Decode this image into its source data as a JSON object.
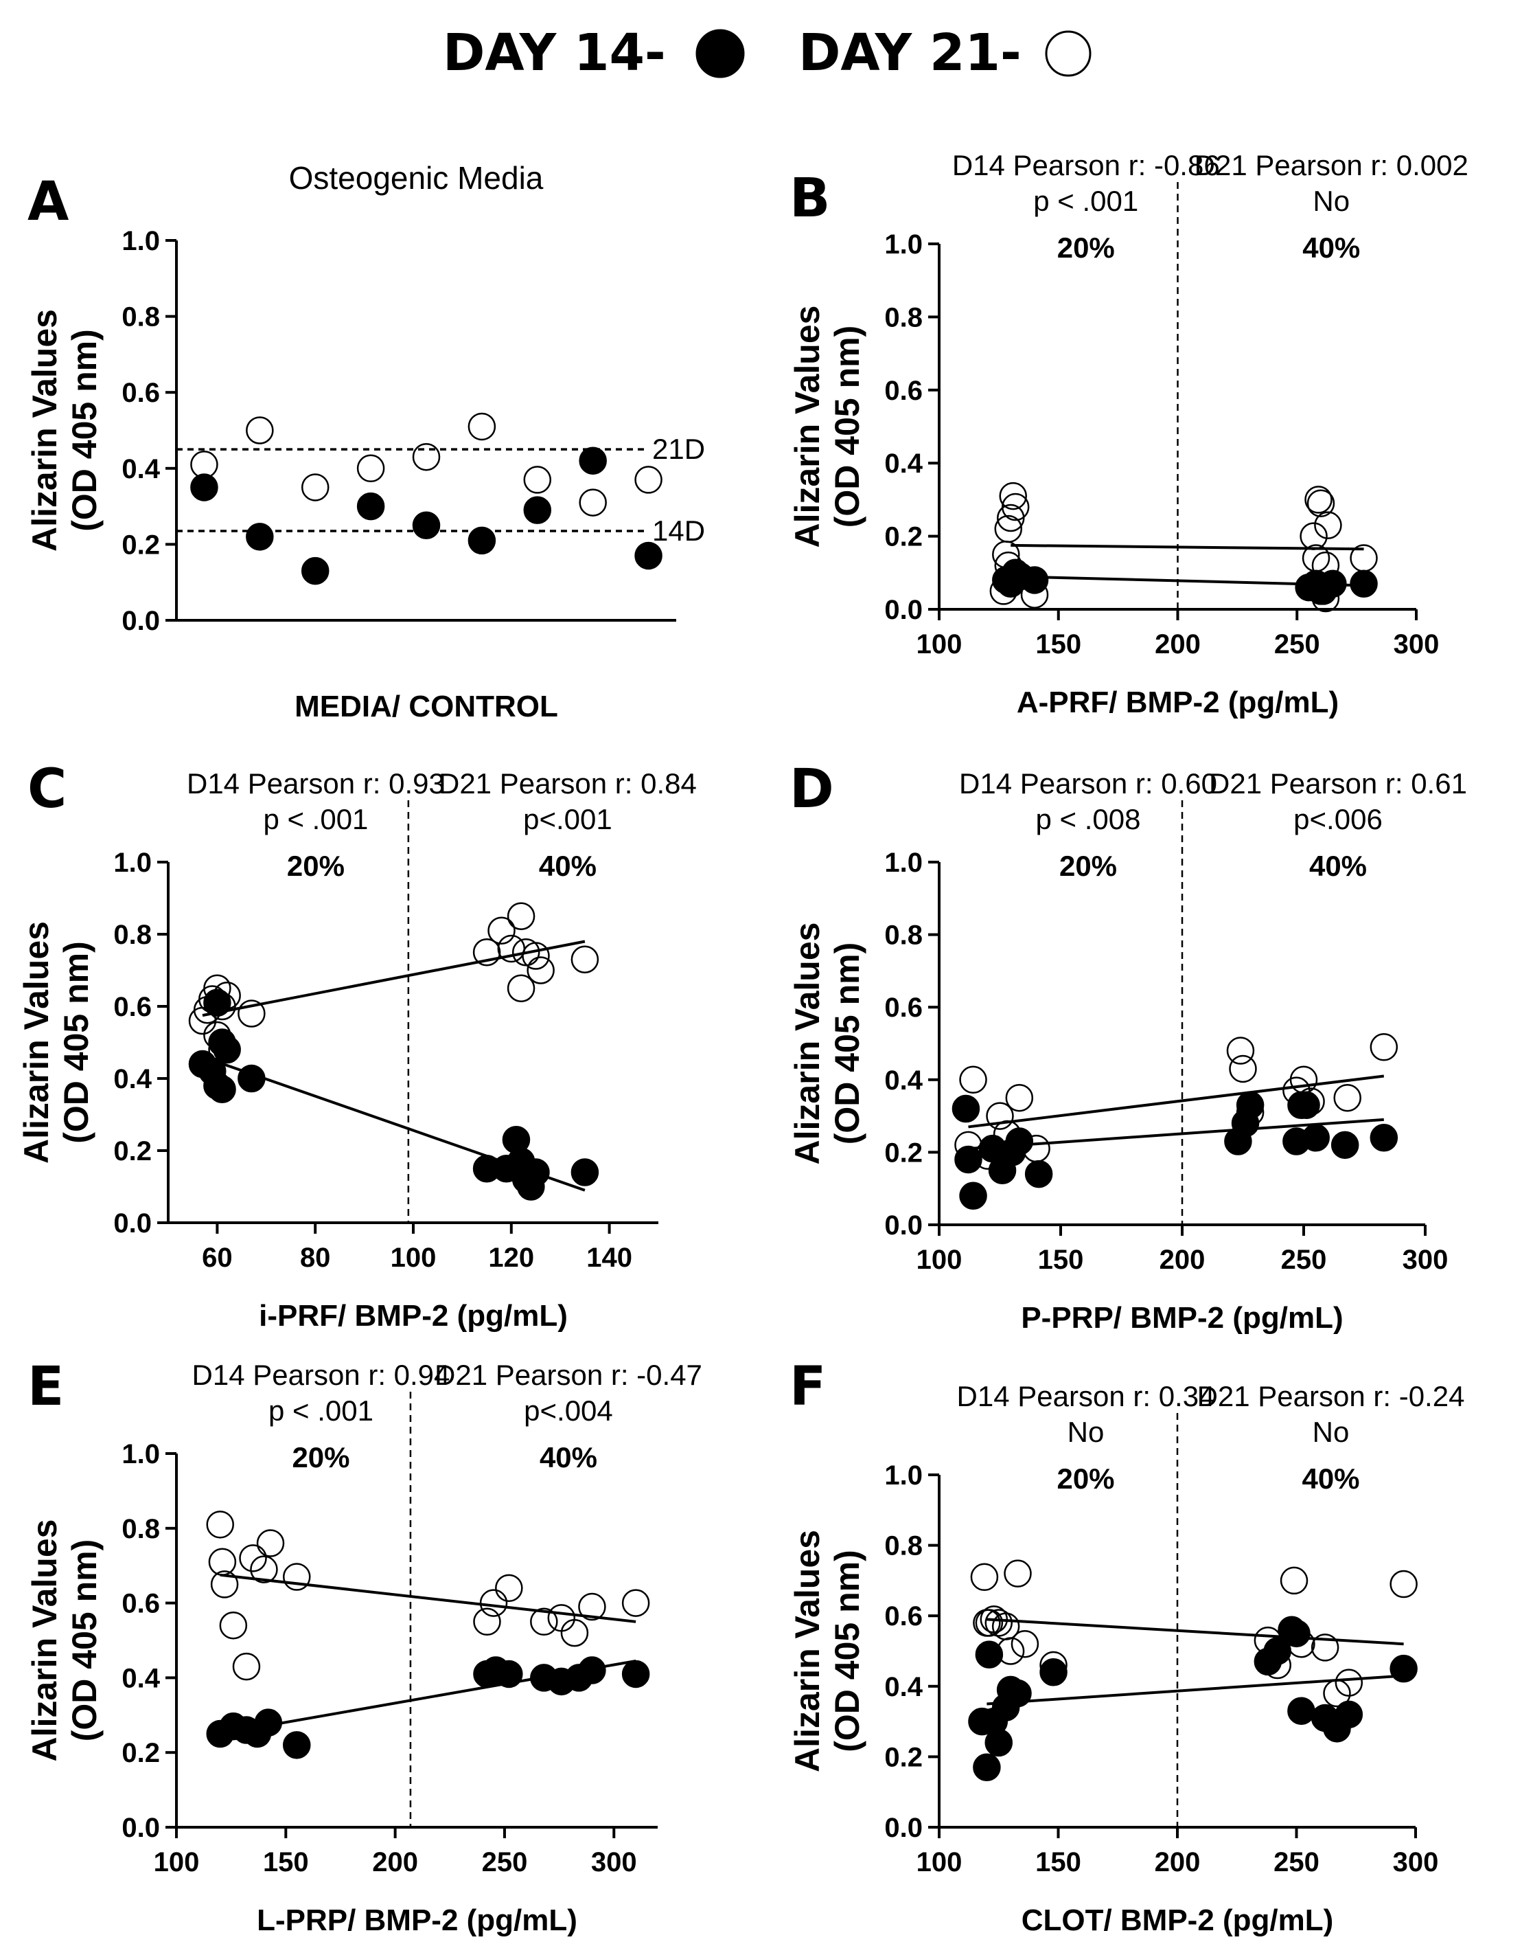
{
  "legend": {
    "day14_label": "DAY 14-",
    "day21_label": "DAY 21-",
    "day14_marker": "filled-circle",
    "day21_marker": "open-circle"
  },
  "chart_data": [
    {
      "panel": "A",
      "type": "scatter",
      "title": "Osteogenic Media",
      "xlabel": "MEDIA/ CONTROL",
      "ylabel": [
        "Alizarin Values",
        "(OD 405 nm)"
      ],
      "ylim": [
        0,
        1.0
      ],
      "yticks": [
        "0.0",
        "0.2",
        "0.4",
        "0.6",
        "0.8",
        "1.0"
      ],
      "xlim": [
        0,
        9
      ],
      "xticks": [],
      "reference_lines": [
        {
          "label": "21D",
          "y": 0.45
        },
        {
          "label": "14D",
          "y": 0.235
        }
      ],
      "series": [
        {
          "name": "DAY 21",
          "marker": "open",
          "x": [
            0.5,
            1.5,
            2.5,
            3.5,
            4.5,
            5.5,
            6.5,
            7.5,
            8.5
          ],
          "y": [
            0.41,
            0.5,
            0.35,
            0.4,
            0.43,
            0.51,
            0.37,
            0.31,
            0.37
          ]
        },
        {
          "name": "DAY 14",
          "marker": "filled",
          "x": [
            0.5,
            1.5,
            2.5,
            3.5,
            4.5,
            5.5,
            6.5,
            7.5,
            8.5
          ],
          "y": [
            0.35,
            0.22,
            0.13,
            0.3,
            0.25,
            0.21,
            0.29,
            0.42,
            0.17
          ]
        }
      ]
    },
    {
      "panel": "B",
      "type": "scatter",
      "xlabel": "A-PRF/ BMP-2 (pg/mL)",
      "ylabel": [
        "Alizarin Values",
        "(OD 405 nm)"
      ],
      "xlim": [
        100,
        300
      ],
      "xticks": [
        "100",
        "150",
        "200",
        "250",
        "300"
      ],
      "ylim": [
        0,
        1.0
      ],
      "yticks": [
        "0.0",
        "0.2",
        "0.4",
        "0.6",
        "0.8",
        "1.0"
      ],
      "divider_x": 200,
      "annotations": {
        "left": {
          "stat": "D14 Pearson r: -0.86",
          "p": "p < .001",
          "pct": "20%"
        },
        "right": {
          "stat": "D21 Pearson r: 0.002",
          "p": "No",
          "pct": "40%"
        }
      },
      "fit_lines": [
        {
          "name": "DAY 21 fit",
          "x": [
            130,
            278
          ],
          "y": [
            0.175,
            0.165
          ]
        },
        {
          "name": "DAY 14 fit",
          "x": [
            130,
            278
          ],
          "y": [
            0.09,
            0.065
          ]
        }
      ],
      "series": [
        {
          "name": "DAY 21",
          "marker": "open",
          "x": [
            128,
            129,
            130,
            131,
            132,
            127,
            129,
            140,
            257,
            259,
            260,
            262,
            263,
            258,
            261,
            278,
            262
          ],
          "y": [
            0.15,
            0.22,
            0.25,
            0.31,
            0.28,
            0.05,
            0.12,
            0.04,
            0.2,
            0.3,
            0.29,
            0.12,
            0.23,
            0.14,
            0.05,
            0.14,
            0.03
          ]
        },
        {
          "name": "DAY 14",
          "marker": "filled",
          "x": [
            128,
            130,
            132,
            134,
            140,
            255,
            258,
            260,
            262,
            265,
            278
          ],
          "y": [
            0.08,
            0.07,
            0.1,
            0.09,
            0.08,
            0.06,
            0.07,
            0.05,
            0.06,
            0.07,
            0.07
          ]
        }
      ]
    },
    {
      "panel": "C",
      "type": "scatter",
      "xlabel": "i-PRF/ BMP-2 (pg/mL)",
      "ylabel": [
        "Alizarin Values",
        "(OD 405 nm)"
      ],
      "xlim": [
        50,
        150
      ],
      "xticks": [
        "60",
        "80",
        "100",
        "120",
        "140"
      ],
      "xtick_values": [
        60,
        80,
        100,
        120,
        140
      ],
      "ylim": [
        0,
        1.0
      ],
      "yticks": [
        "0.0",
        "0.2",
        "0.4",
        "0.6",
        "0.8",
        "1.0"
      ],
      "divider_x": 99,
      "annotations": {
        "left": {
          "stat": "D14 Pearson r: 0.93",
          "p": "p < .001",
          "pct": "20%"
        },
        "right": {
          "stat": "D21 Pearson r: 0.84",
          "p": "p<.001",
          "pct": "40%"
        }
      },
      "fit_lines": [
        {
          "name": "DAY 21 fit",
          "x": [
            57,
            135
          ],
          "y": [
            0.575,
            0.78
          ]
        },
        {
          "name": "DAY 14 fit",
          "x": [
            57,
            135
          ],
          "y": [
            0.46,
            0.09
          ]
        }
      ],
      "series": [
        {
          "name": "DAY 21",
          "marker": "open",
          "x": [
            57,
            58,
            59,
            60,
            61,
            62,
            60,
            61,
            67,
            115,
            118,
            120,
            122,
            123,
            125,
            126,
            122,
            135
          ],
          "y": [
            0.56,
            0.59,
            0.62,
            0.65,
            0.6,
            0.63,
            0.52,
            0.48,
            0.58,
            0.75,
            0.81,
            0.76,
            0.85,
            0.75,
            0.74,
            0.7,
            0.65,
            0.73
          ]
        },
        {
          "name": "DAY 14",
          "marker": "filled",
          "x": [
            57,
            59,
            60,
            61,
            62,
            60,
            61,
            67,
            115,
            119,
            121,
            122,
            123,
            124,
            125,
            135
          ],
          "y": [
            0.44,
            0.42,
            0.61,
            0.5,
            0.48,
            0.38,
            0.37,
            0.4,
            0.15,
            0.15,
            0.23,
            0.17,
            0.12,
            0.1,
            0.14,
            0.14
          ]
        }
      ]
    },
    {
      "panel": "D",
      "type": "scatter",
      "xlabel": "P-PRP/ BMP-2 (pg/mL)",
      "ylabel": [
        "Alizarin Values",
        "(OD 405 nm)"
      ],
      "xlim": [
        100,
        300
      ],
      "xticks": [
        "100",
        "150",
        "200",
        "250",
        "300"
      ],
      "ylim": [
        0,
        1.0
      ],
      "yticks": [
        "0.0",
        "0.2",
        "0.4",
        "0.6",
        "0.8",
        "1.0"
      ],
      "divider_x": 200,
      "annotations": {
        "left": {
          "stat": "D14 Pearson r: 0.60",
          "p": "p < .008",
          "pct": "20%"
        },
        "right": {
          "stat": "D21 Pearson r: 0.61",
          "p": "p<.006",
          "pct": "40%"
        }
      },
      "fit_lines": [
        {
          "name": "DAY 21 fit",
          "x": [
            112,
            283
          ],
          "y": [
            0.27,
            0.41
          ]
        },
        {
          "name": "DAY 14 fit",
          "x": [
            112,
            283
          ],
          "y": [
            0.21,
            0.29
          ]
        }
      ],
      "series": [
        {
          "name": "DAY 21",
          "marker": "open",
          "x": [
            112,
            114,
            120,
            125,
            128,
            133,
            140,
            224,
            225,
            228,
            247,
            250,
            253,
            268,
            283
          ],
          "y": [
            0.22,
            0.4,
            0.19,
            0.3,
            0.25,
            0.35,
            0.21,
            0.48,
            0.43,
            0.31,
            0.37,
            0.4,
            0.34,
            0.35,
            0.49
          ]
        },
        {
          "name": "DAY 14",
          "marker": "filled",
          "x": [
            111,
            112,
            114,
            122,
            126,
            130,
            133,
            141,
            223,
            226,
            228,
            247,
            249,
            251,
            255,
            267,
            283
          ],
          "y": [
            0.32,
            0.18,
            0.08,
            0.21,
            0.15,
            0.2,
            0.23,
            0.14,
            0.23,
            0.28,
            0.33,
            0.23,
            0.33,
            0.33,
            0.24,
            0.22,
            0.24
          ]
        }
      ]
    },
    {
      "panel": "E",
      "type": "scatter",
      "xlabel": "L-PRP/ BMP-2 (pg/mL)",
      "ylabel": [
        "Alizarin Values",
        "(OD 405 nm)"
      ],
      "xlim": [
        100,
        320
      ],
      "xticks": [
        "100",
        "150",
        "200",
        "250",
        "300"
      ],
      "xtick_values": [
        100,
        150,
        200,
        250,
        300
      ],
      "ylim": [
        0,
        1.0
      ],
      "yticks": [
        "0.0",
        "0.2",
        "0.4",
        "0.6",
        "0.8",
        "1.0"
      ],
      "divider_x": 207,
      "annotations": {
        "left": {
          "stat": "D14 Pearson r: 0.94",
          "p": "p < .001",
          "pct": "20%"
        },
        "right": {
          "stat": "D21 Pearson r: -0.47",
          "p": "p<.004",
          "pct": "40%"
        }
      },
      "fit_lines": [
        {
          "name": "DAY 21 fit",
          "x": [
            120,
            310
          ],
          "y": [
            0.675,
            0.55
          ]
        },
        {
          "name": "DAY 14 fit",
          "x": [
            120,
            310
          ],
          "y": [
            0.25,
            0.445
          ]
        }
      ],
      "series": [
        {
          "name": "DAY 21",
          "marker": "open",
          "x": [
            120,
            121,
            122,
            126,
            132,
            135,
            140,
            143,
            155,
            242,
            245,
            252,
            268,
            276,
            282,
            290,
            310
          ],
          "y": [
            0.81,
            0.71,
            0.65,
            0.54,
            0.43,
            0.72,
            0.69,
            0.76,
            0.67,
            0.55,
            0.6,
            0.64,
            0.55,
            0.56,
            0.52,
            0.59,
            0.6
          ]
        },
        {
          "name": "DAY 14",
          "marker": "filled",
          "x": [
            120,
            126,
            132,
            137,
            142,
            155,
            242,
            246,
            252,
            268,
            276,
            284,
            290,
            310
          ],
          "y": [
            0.25,
            0.27,
            0.26,
            0.25,
            0.28,
            0.22,
            0.41,
            0.42,
            0.41,
            0.4,
            0.39,
            0.4,
            0.42,
            0.41
          ]
        }
      ]
    },
    {
      "panel": "F",
      "type": "scatter",
      "xlabel": "CLOT/ BMP-2 (pg/mL)",
      "ylabel": [
        "Alizarin Values",
        "(OD 405 nm)"
      ],
      "xlim": [
        100,
        300
      ],
      "xticks": [
        "100",
        "150",
        "200",
        "250",
        "300"
      ],
      "ylim": [
        0,
        1.0
      ],
      "yticks": [
        "0.0",
        "0.2",
        "0.4",
        "0.6",
        "0.8",
        "1.0"
      ],
      "divider_x": 200,
      "annotations": {
        "left": {
          "stat": "D14 Pearson r: 0.34",
          "p": "No",
          "pct": "20%"
        },
        "right": {
          "stat": "D21 Pearson r: -0.24",
          "p": "No",
          "pct": "40%"
        }
      },
      "fit_lines": [
        {
          "name": "DAY 21 fit",
          "x": [
            120,
            295
          ],
          "y": [
            0.59,
            0.52
          ]
        },
        {
          "name": "DAY 14 fit",
          "x": [
            120,
            295
          ],
          "y": [
            0.35,
            0.43
          ]
        }
      ],
      "series": [
        {
          "name": "DAY 21",
          "marker": "open",
          "x": [
            119,
            120,
            121,
            123,
            125,
            128,
            130,
            133,
            136,
            148,
            238,
            242,
            249,
            252,
            262,
            267,
            272,
            295
          ],
          "y": [
            0.71,
            0.58,
            0.58,
            0.59,
            0.58,
            0.57,
            0.5,
            0.72,
            0.52,
            0.46,
            0.53,
            0.46,
            0.7,
            0.52,
            0.51,
            0.38,
            0.41,
            0.69
          ]
        },
        {
          "name": "DAY 14",
          "marker": "filled",
          "x": [
            118,
            120,
            121,
            123,
            125,
            128,
            130,
            133,
            148,
            238,
            242,
            248,
            250,
            252,
            262,
            267,
            272,
            295
          ],
          "y": [
            0.3,
            0.17,
            0.49,
            0.3,
            0.24,
            0.34,
            0.39,
            0.38,
            0.44,
            0.47,
            0.5,
            0.56,
            0.55,
            0.33,
            0.31,
            0.28,
            0.32,
            0.45
          ]
        }
      ]
    }
  ]
}
